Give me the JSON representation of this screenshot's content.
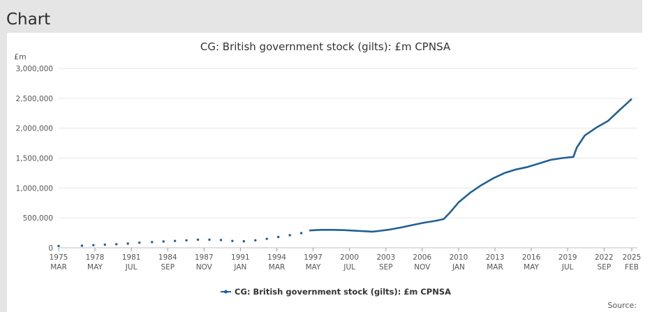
{
  "page": {
    "heading": "Chart",
    "source_label": "Source:"
  },
  "chart_data": {
    "type": "line",
    "title": "CG: British government stock (gilts): £m CPNSA",
    "y_unit": "£m",
    "ylim": [
      0,
      3000000
    ],
    "y_ticks": [
      0,
      500000,
      1000000,
      1500000,
      2000000,
      2500000,
      3000000
    ],
    "y_tick_labels": [
      "0",
      "500,000",
      "1,000,000",
      "1,500,000",
      "2,000,000",
      "2,500,000",
      "3,000,000"
    ],
    "xlim": [
      1975.17,
      2025.08
    ],
    "x_ticks": [
      {
        "year": 1975.17,
        "year_label": "1975",
        "month_label": "MAR"
      },
      {
        "year": 1978.33,
        "year_label": "1978",
        "month_label": "MAY"
      },
      {
        "year": 1981.5,
        "year_label": "1981",
        "month_label": "JUL"
      },
      {
        "year": 1984.67,
        "year_label": "1984",
        "month_label": "SEP"
      },
      {
        "year": 1987.83,
        "year_label": "1987",
        "month_label": "NOV"
      },
      {
        "year": 1991.0,
        "year_label": "1991",
        "month_label": "JAN"
      },
      {
        "year": 1994.17,
        "year_label": "1994",
        "month_label": "MAR"
      },
      {
        "year": 1997.33,
        "year_label": "1997",
        "month_label": "MAY"
      },
      {
        "year": 2000.5,
        "year_label": "2000",
        "month_label": "JUL"
      },
      {
        "year": 2003.67,
        "year_label": "2003",
        "month_label": "SEP"
      },
      {
        "year": 2006.83,
        "year_label": "2006",
        "month_label": "NOV"
      },
      {
        "year": 2010.0,
        "year_label": "2010",
        "month_label": "JAN"
      },
      {
        "year": 2013.17,
        "year_label": "2013",
        "month_label": "MAR"
      },
      {
        "year": 2016.33,
        "year_label": "2016",
        "month_label": "MAY"
      },
      {
        "year": 2019.5,
        "year_label": "2019",
        "month_label": "JUL"
      },
      {
        "year": 2022.67,
        "year_label": "2022",
        "month_label": "SEP"
      },
      {
        "year": 2025.08,
        "year_label": "2025",
        "month_label": "FEB"
      }
    ],
    "series": [
      {
        "name": "CG: British government stock (gilts): £m CPNSA",
        "color": "#206095",
        "sparse_points": [
          [
            1975.17,
            30000
          ],
          [
            1977.2,
            35000
          ],
          [
            1978.2,
            45000
          ],
          [
            1979.2,
            52000
          ],
          [
            1980.2,
            60000
          ],
          [
            1981.2,
            70000
          ],
          [
            1982.2,
            85000
          ],
          [
            1983.3,
            95000
          ],
          [
            1984.3,
            105000
          ],
          [
            1985.3,
            115000
          ],
          [
            1986.3,
            125000
          ],
          [
            1987.3,
            135000
          ],
          [
            1988.3,
            135000
          ],
          [
            1989.3,
            130000
          ],
          [
            1990.3,
            115000
          ],
          [
            1991.3,
            110000
          ],
          [
            1992.3,
            125000
          ],
          [
            1993.3,
            150000
          ],
          [
            1994.3,
            180000
          ],
          [
            1995.3,
            210000
          ],
          [
            1996.3,
            245000
          ]
        ],
        "dense_points": [
          [
            1997.0,
            290000
          ],
          [
            1998.0,
            300000
          ],
          [
            1999.0,
            300000
          ],
          [
            2000.0,
            295000
          ],
          [
            2001.0,
            285000
          ],
          [
            2002.0,
            275000
          ],
          [
            2002.5,
            270000
          ],
          [
            2003.0,
            280000
          ],
          [
            2004.0,
            305000
          ],
          [
            2005.0,
            340000
          ],
          [
            2006.0,
            380000
          ],
          [
            2007.0,
            420000
          ],
          [
            2008.0,
            450000
          ],
          [
            2008.7,
            480000
          ],
          [
            2009.3,
            600000
          ],
          [
            2010.0,
            760000
          ],
          [
            2011.0,
            920000
          ],
          [
            2012.0,
            1050000
          ],
          [
            2013.0,
            1160000
          ],
          [
            2014.0,
            1250000
          ],
          [
            2015.0,
            1310000
          ],
          [
            2016.0,
            1350000
          ],
          [
            2017.0,
            1410000
          ],
          [
            2018.0,
            1470000
          ],
          [
            2019.0,
            1500000
          ],
          [
            2020.0,
            1520000
          ],
          [
            2020.3,
            1680000
          ],
          [
            2021.0,
            1880000
          ],
          [
            2022.0,
            2010000
          ],
          [
            2023.0,
            2120000
          ],
          [
            2024.0,
            2300000
          ],
          [
            2025.08,
            2490000
          ]
        ]
      }
    ],
    "legend": {
      "label": "CG: British government stock (gilts): £m CPNSA",
      "position": "bottom"
    }
  }
}
